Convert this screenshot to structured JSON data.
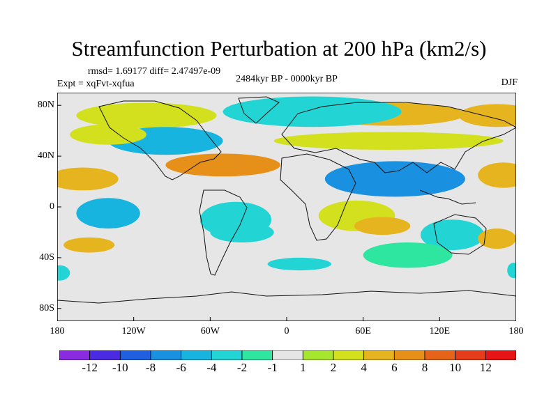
{
  "chart_data": {
    "type": "heatmap",
    "title": "Streamfunction Perturbation at 200 hPa (km2/s)",
    "stats_line": "rmsd= 1.69177 diff= 2.47497e-09",
    "experiment": "Expt = xqFvt-xqfua",
    "period": "2484kyr BP - 0000kyr BP",
    "season": "DJF",
    "xlim": [
      -180,
      180
    ],
    "ylim": [
      -90,
      90
    ],
    "x_ticks": [
      {
        "value": -180,
        "label": "180"
      },
      {
        "value": -120,
        "label": "120W"
      },
      {
        "value": -60,
        "label": "60W"
      },
      {
        "value": 0,
        "label": "0"
      },
      {
        "value": 60,
        "label": "60E"
      },
      {
        "value": 120,
        "label": "120E"
      },
      {
        "value": 180,
        "label": "180"
      }
    ],
    "y_ticks": [
      {
        "value": 80,
        "label": "80N"
      },
      {
        "value": 40,
        "label": "40N"
      },
      {
        "value": 0,
        "label": "0"
      },
      {
        "value": -40,
        "label": "40S"
      },
      {
        "value": -80,
        "label": "80S"
      }
    ],
    "colorbar": {
      "labels": [
        "-12",
        "-10",
        "-8",
        "-6",
        "-4",
        "-2",
        "-1",
        "1",
        "2",
        "4",
        "6",
        "8",
        "10",
        "12"
      ],
      "colors": [
        "#8a2be2",
        "#4b2be2",
        "#1f5fe0",
        "#1a90e0",
        "#18b4e0",
        "#22d4d4",
        "#2ee6a0",
        "#e6e6e6",
        "#a6e62e",
        "#d2e01e",
        "#e6b41e",
        "#e6901a",
        "#e6641a",
        "#e63c1a",
        "#e61414"
      ]
    },
    "anomaly_regions": [
      {
        "name": "arctic-canada",
        "level": 2,
        "lon": -110,
        "lat": 72,
        "rlon": 55,
        "rlat": 10
      },
      {
        "name": "arctic-siberia",
        "level": 3,
        "lon": 80,
        "lat": 73,
        "rlon": 60,
        "rlat": 9
      },
      {
        "name": "east-siberia",
        "level": 3,
        "lon": 165,
        "lat": 72,
        "rlon": 30,
        "rlat": 9
      },
      {
        "name": "arctic-atlantic",
        "level": -2,
        "lon": 20,
        "lat": 75,
        "rlon": 70,
        "rlat": 12
      },
      {
        "name": "north-america",
        "level": -3,
        "lon": -95,
        "lat": 52,
        "rlon": 45,
        "rlat": 11
      },
      {
        "name": "north-pacific",
        "level": 2,
        "lon": -140,
        "lat": 57,
        "rlon": 30,
        "rlat": 8
      },
      {
        "name": "subtropical-atlantic",
        "level": 4,
        "lon": -50,
        "lat": 33,
        "rlon": 45,
        "rlat": 9
      },
      {
        "name": "subtropical-pacific",
        "level": 3,
        "lon": -160,
        "lat": 22,
        "rlon": 28,
        "rlat": 9
      },
      {
        "name": "eurasia-band",
        "level": 2,
        "lon": 80,
        "lat": 52,
        "rlon": 90,
        "rlat": 7
      },
      {
        "name": "north-pacific-west",
        "level": 3,
        "lon": 170,
        "lat": 25,
        "rlon": 20,
        "rlat": 10
      },
      {
        "name": "south-asia",
        "level": -4,
        "lon": 85,
        "lat": 22,
        "rlon": 55,
        "rlat": 14
      },
      {
        "name": "tropical-atlantic",
        "level": -2,
        "lon": -40,
        "lat": -10,
        "rlon": 28,
        "rlat": 14
      },
      {
        "name": "south-atlantic",
        "level": -2,
        "lon": -35,
        "lat": -20,
        "rlon": 25,
        "rlat": 8
      },
      {
        "name": "central-pacific",
        "level": -3,
        "lon": -140,
        "lat": -5,
        "rlon": 25,
        "rlat": 12
      },
      {
        "name": "east-africa",
        "level": 2,
        "lon": 55,
        "lat": -7,
        "rlon": 30,
        "rlat": 12
      },
      {
        "name": "indian-ocean-south",
        "level": 3,
        "lon": 75,
        "lat": -15,
        "rlon": 22,
        "rlat": 7
      },
      {
        "name": "australia",
        "level": -2,
        "lon": 130,
        "lat": -22,
        "rlon": 25,
        "rlat": 12
      },
      {
        "name": "southern-ocean-indian",
        "level": -1,
        "lon": 95,
        "lat": -38,
        "rlon": 35,
        "rlat": 10
      },
      {
        "name": "south-pacific",
        "level": 3,
        "lon": -155,
        "lat": -30,
        "rlon": 20,
        "rlat": 6
      },
      {
        "name": "new-zealand",
        "level": 3,
        "lon": 165,
        "lat": -25,
        "rlon": 15,
        "rlat": 8
      },
      {
        "name": "far-south-atlantic",
        "level": -2,
        "lon": 10,
        "lat": -45,
        "rlon": 25,
        "rlat": 5
      },
      {
        "name": "southern-edge-west",
        "level": -2,
        "lon": -178,
        "lat": -52,
        "rlon": 8,
        "rlat": 6
      },
      {
        "name": "southern-edge-east",
        "level": -2,
        "lon": 178,
        "lat": -50,
        "rlon": 5,
        "rlat": 6
      }
    ]
  }
}
